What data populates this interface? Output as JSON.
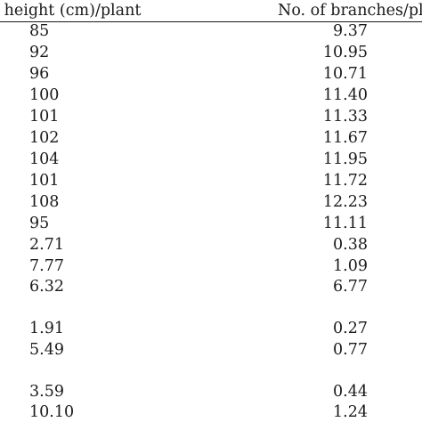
{
  "header": {
    "col1": "t height (cm)/plant",
    "col2": "No. of branches/pla"
  },
  "rows": [
    {
      "height": "85",
      "branches": "9.37"
    },
    {
      "height": "92",
      "branches": "10.95"
    },
    {
      "height": "96",
      "branches": "10.71"
    },
    {
      "height": "100",
      "branches": "11.40"
    },
    {
      "height": "101",
      "branches": "11.33"
    },
    {
      "height": "102",
      "branches": "11.67"
    },
    {
      "height": "104",
      "branches": "11.95"
    },
    {
      "height": "101",
      "branches": "11.72"
    },
    {
      "height": "108",
      "branches": "12.23"
    },
    {
      "height": "95",
      "branches": "11.11"
    },
    {
      "height": "2.71",
      "branches": "0.38"
    },
    {
      "height": "7.77",
      "branches": "1.09"
    },
    {
      "height": "6.32",
      "branches": "6.77"
    },
    {
      "height": "1.91",
      "branches": "0.27"
    },
    {
      "height": "5.49",
      "branches": "0.77"
    },
    {
      "height": "3.59",
      "branches": "0.44"
    },
    {
      "height": "10.10",
      "branches": "1.24"
    }
  ]
}
